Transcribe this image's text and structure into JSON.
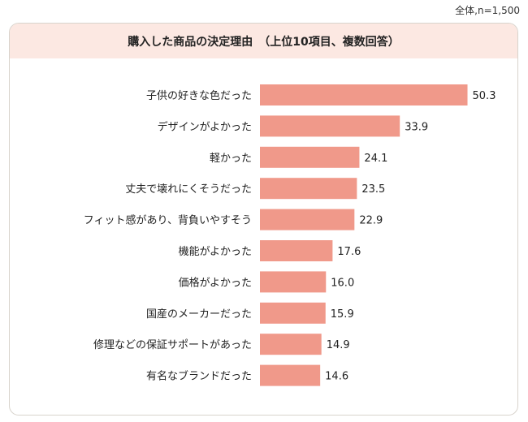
{
  "note": "全体,n=1,500",
  "chart_data": {
    "type": "bar",
    "orientation": "horizontal",
    "title": "購入した商品の決定理由　（上位10項目、複数回答）",
    "categories": [
      "子供の好きな色だった",
      "デザインがよかった",
      "軽かった",
      "丈夫で壊れにくそうだった",
      "フィット感があり、背負いやすそう",
      "機能がよかった",
      "価格がよかった",
      "国産のメーカーだった",
      "修理などの保証サポートがあった",
      "有名なブランドだった"
    ],
    "values": [
      50.3,
      33.9,
      24.1,
      23.5,
      22.9,
      17.6,
      16.0,
      15.9,
      14.9,
      14.6
    ],
    "value_labels": [
      "50.3",
      "33.9",
      "24.1",
      "23.5",
      "22.9",
      "17.6",
      "16.0",
      "15.9",
      "14.9",
      "14.6"
    ],
    "xlim": [
      0,
      55
    ],
    "bar_color": "#f0998a",
    "grid": false
  }
}
